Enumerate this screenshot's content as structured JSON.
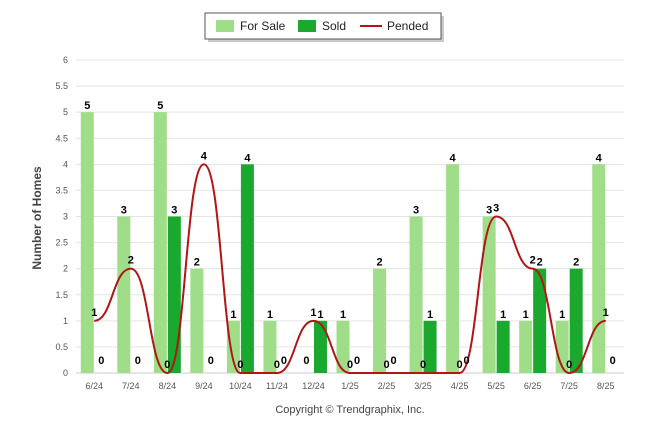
{
  "chart_data": {
    "type": "bar",
    "title": "",
    "xlabel": "",
    "ylabel": "Number of Homes",
    "ylim": [
      0,
      6
    ],
    "y_ticks": [
      "0",
      "0.5",
      "1",
      "1.5",
      "2",
      "2.5",
      "3",
      "3.5",
      "4",
      "4.5",
      "5",
      "5.5",
      "6"
    ],
    "grid": true,
    "legend_position": "top-center",
    "categories": [
      "6/24",
      "7/24",
      "8/24",
      "9/24",
      "10/24",
      "11/24",
      "12/24",
      "1/25",
      "2/25",
      "3/25",
      "4/25",
      "5/25",
      "6/25",
      "7/25",
      "8/25"
    ],
    "series": [
      {
        "name": "For Sale",
        "kind": "bar",
        "color": "#a0dd88",
        "values": [
          5,
          3,
          5,
          2,
          1,
          1,
          0,
          1,
          2,
          3,
          4,
          3,
          1,
          1,
          4
        ]
      },
      {
        "name": "Sold",
        "kind": "bar",
        "color": "#1aa82e",
        "values": [
          0,
          0,
          3,
          0,
          4,
          0,
          1,
          0,
          0,
          1,
          0,
          1,
          2,
          2,
          0
        ]
      },
      {
        "name": "Pended",
        "kind": "line",
        "color": "#b01616",
        "values": [
          1,
          2,
          0,
          4,
          0,
          0,
          1,
          0,
          0,
          0,
          0,
          3,
          2,
          0,
          1
        ]
      }
    ],
    "credit": "Copyright © Trendgraphix, Inc."
  }
}
